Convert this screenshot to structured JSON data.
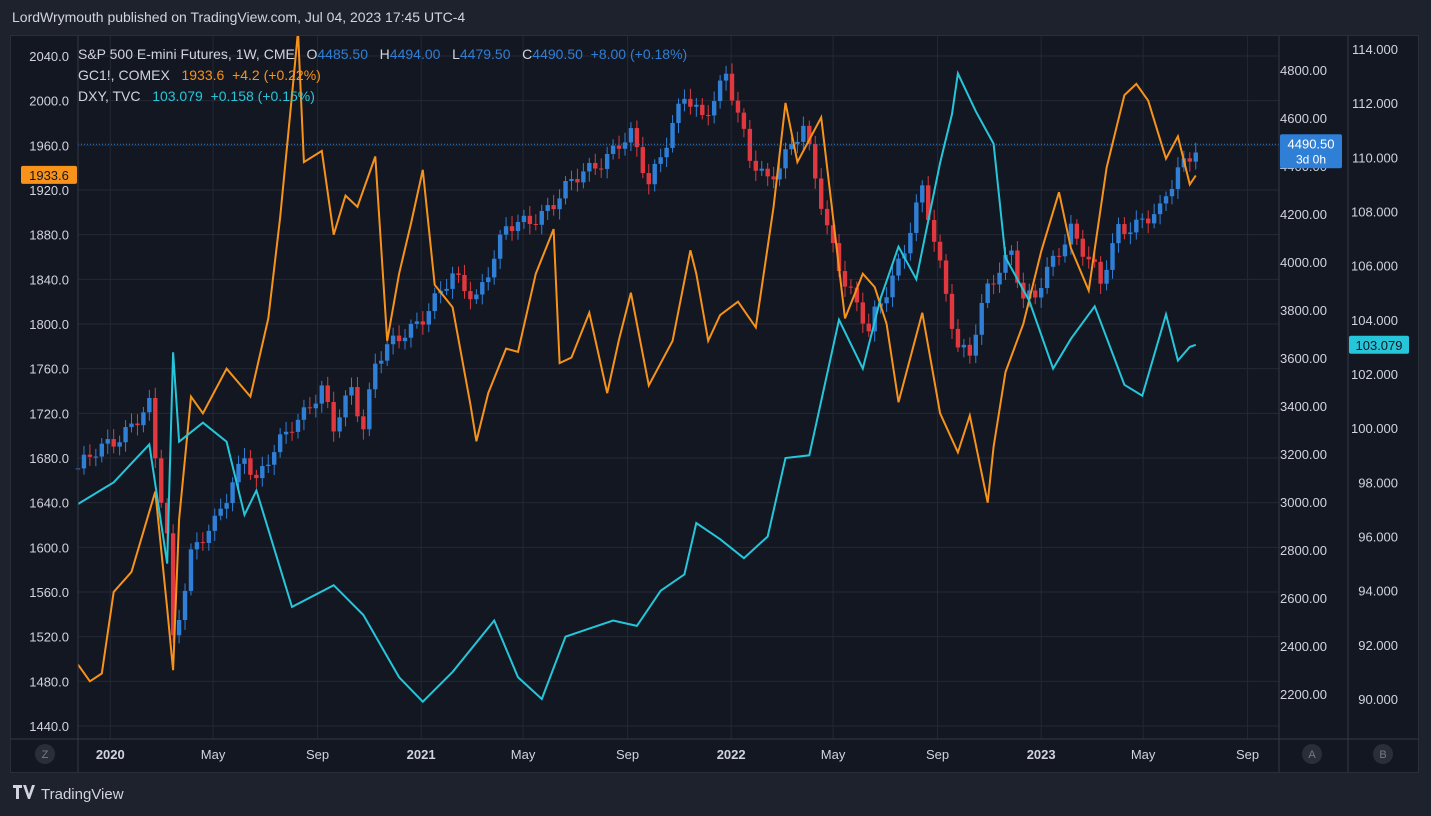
{
  "publisher_line": "LordWrymouth published on TradingView.com, Jul 04, 2023 17:45 UTC-4",
  "footer": {
    "brand": "TradingView",
    "icon": "tradingview-logo-icon"
  },
  "legend": [
    {
      "name": "S&P 500 E-mini Futures, 1W, CME",
      "o_label": "O",
      "o": "4485.50",
      "h_label": "H",
      "h": "4494.00",
      "l_label": "L",
      "l": "4479.50",
      "c_label": "C",
      "c": "4490.50",
      "change": "+8.00 (+0.18%)"
    },
    {
      "name": "GC1!, COMEX",
      "value": "1933.6",
      "change": "+4.2 (+0.22%)"
    },
    {
      "name": "DXY, TVC",
      "value": "103.079",
      "change": "+0.158 (+0.15%)"
    }
  ],
  "axis_buttons": {
    "left": "Z",
    "mid": "A",
    "right": "B"
  },
  "colors": {
    "spx_up": "#2f7fd6",
    "spx_down": "#e0383e",
    "gold": "#f7931a",
    "dxy": "#26c6da",
    "background": "#131722",
    "grid": "#242835",
    "text": "#d1d4dc"
  },
  "chart_data": {
    "type": "line",
    "x_ticks": [
      "2020",
      "May",
      "Sep",
      "2021",
      "May",
      "Sep",
      "2022",
      "May",
      "Sep",
      "2023",
      "May",
      "Sep"
    ],
    "gold_axis": {
      "ticks": [
        "2040.0",
        "2000.0",
        "1960.0",
        "1920.0",
        "1880.0",
        "1840.0",
        "1800.0",
        "1760.0",
        "1720.0",
        "1680.0",
        "1640.0",
        "1600.0",
        "1560.0",
        "1520.0",
        "1480.0",
        "1440.0"
      ],
      "range": [
        1440,
        2040
      ]
    },
    "spx_axis": {
      "ticks": [
        "4800.00",
        "4600.00",
        "4400.00",
        "4200.00",
        "4000.00",
        "3800.00",
        "3600.00",
        "3400.00",
        "3200.00",
        "3000.00",
        "2800.00",
        "2600.00",
        "2400.00",
        "2200.00"
      ],
      "range": [
        2200,
        4800
      ]
    },
    "dxy_axis": {
      "ticks": [
        "114.000",
        "112.000",
        "110.000",
        "108.000",
        "106.000",
        "104.000",
        "102.000",
        "100.000",
        "98.000",
        "96.000",
        "94.000",
        "92.000",
        "90.000"
      ],
      "range": [
        90,
        114
      ]
    },
    "last_labels": {
      "gold": "1933.6",
      "spx": "4490.50",
      "spx_countdown": "3d 0h",
      "dxy": "103.079"
    },
    "series": [
      {
        "name": "GC1!, COMEX",
        "color": "#f7931a",
        "x": [
          "2019-11-24",
          "2019-12-08",
          "2019-12-22",
          "2020-01-05",
          "2020-01-26",
          "2020-02-23",
          "2020-03-08",
          "2020-03-15",
          "2020-03-22",
          "2020-04-05",
          "2020-04-19",
          "2020-05-17",
          "2020-06-14",
          "2020-07-05",
          "2020-07-19",
          "2020-08-02",
          "2020-08-09",
          "2020-08-16",
          "2020-09-06",
          "2020-09-20",
          "2020-10-04",
          "2020-10-18",
          "2020-11-08",
          "2020-11-22",
          "2020-12-06",
          "2020-12-20",
          "2021-01-03",
          "2021-01-17",
          "2021-02-07",
          "2021-02-28",
          "2021-03-07",
          "2021-03-21",
          "2021-04-11",
          "2021-04-25",
          "2021-05-16",
          "2021-06-06",
          "2021-06-13",
          "2021-06-27",
          "2021-07-18",
          "2021-08-08",
          "2021-08-22",
          "2021-09-05",
          "2021-09-26",
          "2021-10-24",
          "2021-11-14",
          "2021-11-21",
          "2021-12-05",
          "2021-12-19",
          "2022-01-09",
          "2022-01-30",
          "2022-02-20",
          "2022-03-06",
          "2022-03-20",
          "2022-04-17",
          "2022-05-15",
          "2022-06-05",
          "2022-06-19",
          "2022-07-03",
          "2022-07-17",
          "2022-08-14",
          "2022-09-04",
          "2022-09-25",
          "2022-10-09",
          "2022-10-30",
          "2022-11-06",
          "2022-11-20",
          "2022-12-11",
          "2023-01-01",
          "2023-01-22",
          "2023-02-05",
          "2023-02-26",
          "2023-03-19",
          "2023-04-09",
          "2023-04-23",
          "2023-05-07",
          "2023-05-28",
          "2023-06-11",
          "2023-06-25",
          "2023-07-02"
        ],
        "values": [
          1495,
          1480,
          1487,
          1560,
          1578,
          1650,
          1545,
          1490,
          1625,
          1735,
          1720,
          1760,
          1735,
          1805,
          1895,
          2005,
          2062,
          1945,
          1955,
          1880,
          1915,
          1905,
          1950,
          1785,
          1845,
          1890,
          1938,
          1835,
          1815,
          1728,
          1695,
          1738,
          1778,
          1775,
          1845,
          1885,
          1765,
          1770,
          1810,
          1738,
          1786,
          1828,
          1745,
          1785,
          1866,
          1845,
          1785,
          1808,
          1820,
          1797,
          1905,
          1998,
          1945,
          1985,
          1805,
          1845,
          1833,
          1800,
          1730,
          1810,
          1720,
          1685,
          1718,
          1640,
          1690,
          1757,
          1800,
          1865,
          1918,
          1868,
          1830,
          1940,
          2005,
          2015,
          2000,
          1948,
          1968,
          1925,
          1933
        ]
      },
      {
        "name": "S&P 500 E-mini Futures, 1W, CME",
        "color": "#2f7fd6",
        "x": [
          "2019-11-24",
          "2020-01-05",
          "2020-02-16",
          "2020-02-23",
          "2020-03-08",
          "2020-03-15",
          "2020-03-22",
          "2020-04-05",
          "2020-05-03",
          "2020-06-07",
          "2020-06-21",
          "2020-08-02",
          "2020-09-06",
          "2020-09-20",
          "2020-10-11",
          "2020-10-25",
          "2020-11-08",
          "2021-01-03",
          "2021-02-07",
          "2021-03-07",
          "2021-04-11",
          "2021-05-09",
          "2021-06-06",
          "2021-07-11",
          "2021-08-15",
          "2021-09-05",
          "2021-09-26",
          "2021-11-07",
          "2021-11-28",
          "2021-12-26",
          "2022-01-23",
          "2022-02-13",
          "2022-03-27",
          "2022-04-24",
          "2022-05-15",
          "2022-06-12",
          "2022-06-19",
          "2022-07-24",
          "2022-08-14",
          "2022-09-11",
          "2022-09-25",
          "2022-10-09",
          "2022-10-30",
          "2022-11-27",
          "2022-12-11",
          "2022-12-25",
          "2023-02-05",
          "2023-03-05",
          "2023-03-12",
          "2023-04-02",
          "2023-05-21",
          "2023-06-11",
          "2023-06-25",
          "2023-07-02"
        ],
        "values": [
          3140,
          3260,
          3390,
          3170,
          2860,
          2430,
          2540,
          2790,
          2900,
          3210,
          3080,
          3330,
          3460,
          3300,
          3480,
          3320,
          3580,
          3780,
          3930,
          3860,
          4130,
          4180,
          4240,
          4380,
          4460,
          4520,
          4340,
          4680,
          4600,
          4790,
          4420,
          4350,
          4550,
          4150,
          3920,
          3700,
          3780,
          4060,
          4290,
          3880,
          3650,
          3620,
          3880,
          4060,
          3850,
          3850,
          4150,
          3960,
          3900,
          4140,
          4200,
          4390,
          4450,
          4490
        ]
      },
      {
        "name": "DXY, TVC",
        "color": "#26c6da",
        "x": [
          "2019-11-24",
          "2020-01-05",
          "2020-02-16",
          "2020-03-08",
          "2020-03-15",
          "2020-03-22",
          "2020-04-19",
          "2020-05-17",
          "2020-06-07",
          "2020-06-21",
          "2020-08-02",
          "2020-09-20",
          "2020-10-25",
          "2020-12-06",
          "2021-01-03",
          "2021-02-07",
          "2021-03-28",
          "2021-04-25",
          "2021-05-23",
          "2021-06-20",
          "2021-07-18",
          "2021-08-15",
          "2021-09-12",
          "2021-10-10",
          "2021-11-07",
          "2021-11-21",
          "2021-12-19",
          "2022-01-16",
          "2022-02-13",
          "2022-03-06",
          "2022-04-03",
          "2022-05-08",
          "2022-06-05",
          "2022-06-26",
          "2022-07-17",
          "2022-08-07",
          "2022-09-04",
          "2022-09-18",
          "2022-09-25",
          "2022-10-16",
          "2022-11-06",
          "2022-11-20",
          "2022-12-18",
          "2023-01-15",
          "2023-02-05",
          "2023-03-05",
          "2023-04-09",
          "2023-04-30",
          "2023-05-28",
          "2023-06-11",
          "2023-06-25",
          "2023-07-02"
        ],
        "values": [
          97.2,
          98.0,
          99.4,
          95.0,
          102.8,
          99.5,
          100.2,
          99.5,
          96.8,
          97.7,
          93.4,
          94.2,
          93.1,
          90.8,
          89.9,
          91.0,
          92.9,
          90.8,
          90.0,
          92.3,
          92.6,
          92.9,
          92.7,
          94.0,
          94.6,
          96.5,
          95.9,
          95.2,
          96.0,
          98.9,
          99.0,
          104.0,
          102.2,
          104.8,
          106.7,
          105.5,
          109.8,
          111.6,
          113.1,
          111.7,
          110.5,
          106.3,
          104.7,
          102.2,
          103.3,
          104.5,
          101.6,
          101.2,
          104.2,
          102.5,
          103.0,
          103.079
        ]
      }
    ]
  }
}
